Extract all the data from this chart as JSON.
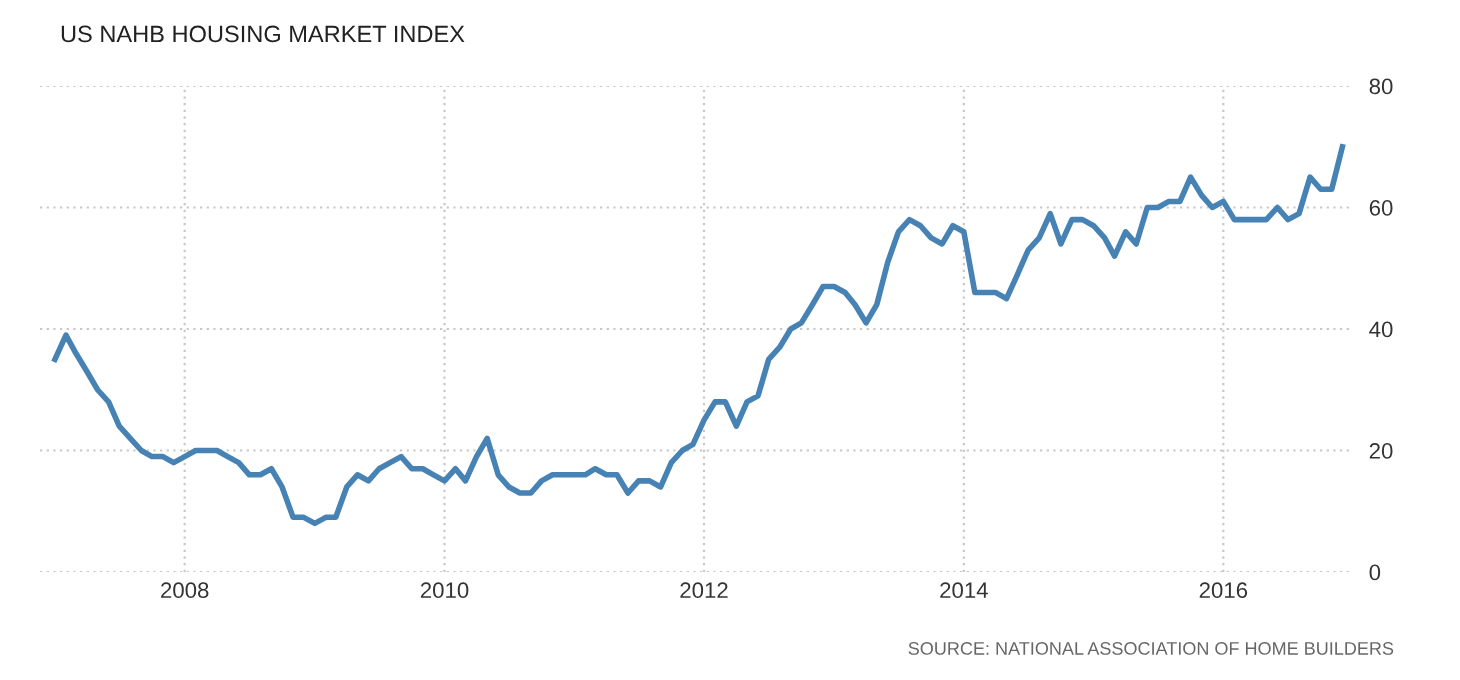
{
  "chart_data": {
    "type": "line",
    "title": "US NAHB HOUSING MARKET INDEX",
    "annotations": [
      "SOURCE: NATIONAL ASSOCIATION OF HOME BUILDERS"
    ],
    "x": [
      "2007-01",
      "2007-02",
      "2007-03",
      "2007-04",
      "2007-05",
      "2007-06",
      "2007-07",
      "2007-08",
      "2007-09",
      "2007-10",
      "2007-11",
      "2007-12",
      "2008-01",
      "2008-02",
      "2008-03",
      "2008-04",
      "2008-05",
      "2008-06",
      "2008-07",
      "2008-08",
      "2008-09",
      "2008-10",
      "2008-11",
      "2008-12",
      "2009-01",
      "2009-02",
      "2009-03",
      "2009-04",
      "2009-05",
      "2009-06",
      "2009-07",
      "2009-08",
      "2009-09",
      "2009-10",
      "2009-11",
      "2009-12",
      "2010-01",
      "2010-02",
      "2010-03",
      "2010-04",
      "2010-05",
      "2010-06",
      "2010-07",
      "2010-08",
      "2010-09",
      "2010-10",
      "2010-11",
      "2010-12",
      "2011-01",
      "2011-02",
      "2011-03",
      "2011-04",
      "2011-05",
      "2011-06",
      "2011-07",
      "2011-08",
      "2011-09",
      "2011-10",
      "2011-11",
      "2011-12",
      "2012-01",
      "2012-02",
      "2012-03",
      "2012-04",
      "2012-05",
      "2012-06",
      "2012-07",
      "2012-08",
      "2012-09",
      "2012-10",
      "2012-11",
      "2012-12",
      "2013-01",
      "2013-02",
      "2013-03",
      "2013-04",
      "2013-05",
      "2013-06",
      "2013-07",
      "2013-08",
      "2013-09",
      "2013-10",
      "2013-11",
      "2013-12",
      "2014-01",
      "2014-02",
      "2014-03",
      "2014-04",
      "2014-05",
      "2014-06",
      "2014-07",
      "2014-08",
      "2014-09",
      "2014-10",
      "2014-11",
      "2014-12",
      "2015-01",
      "2015-02",
      "2015-03",
      "2015-04",
      "2015-05",
      "2015-06",
      "2015-07",
      "2015-08",
      "2015-09",
      "2015-10",
      "2015-11",
      "2015-12",
      "2016-01",
      "2016-02",
      "2016-03",
      "2016-04",
      "2016-05",
      "2016-06",
      "2016-07",
      "2016-08",
      "2016-09",
      "2016-10",
      "2016-11",
      "2016-12"
    ],
    "series": [
      {
        "color": "#4682b4",
        "values": [
          35,
          39,
          36,
          33,
          30,
          28,
          24,
          22,
          20,
          19,
          19,
          18,
          19,
          20,
          20,
          20,
          19,
          18,
          16,
          16,
          17,
          14,
          9,
          9,
          8,
          9,
          9,
          14,
          16,
          15,
          17,
          18,
          19,
          17,
          17,
          16,
          15,
          17,
          15,
          19,
          22,
          16,
          14,
          13,
          13,
          15,
          16,
          16,
          16,
          16,
          17,
          16,
          16,
          13,
          15,
          15,
          14,
          18,
          20,
          21,
          25,
          28,
          28,
          24,
          28,
          29,
          35,
          37,
          40,
          41,
          44,
          47,
          47,
          46,
          44,
          41,
          44,
          51,
          56,
          58,
          57,
          55,
          54,
          57,
          56,
          46,
          46,
          46,
          45,
          49,
          53,
          55,
          59,
          54,
          58,
          58,
          57,
          55,
          52,
          56,
          54,
          60,
          60,
          61,
          61,
          65,
          62,
          60,
          61,
          58,
          58,
          58,
          58,
          60,
          58,
          59,
          65,
          63,
          63,
          70
        ]
      }
    ],
    "xlim": [
      "2006-11-20",
      "2016-12-28"
    ],
    "xticks": [
      {
        "value": "2008-01-01",
        "label": "2008"
      },
      {
        "value": "2010-01-01",
        "label": "2010"
      },
      {
        "value": "2012-01-01",
        "label": "2012"
      },
      {
        "value": "2014-01-01",
        "label": "2014"
      },
      {
        "value": "2016-01-01",
        "label": "2016"
      }
    ],
    "ylim": [
      0,
      80
    ],
    "yticks": [
      0,
      20,
      40,
      60,
      80
    ],
    "grid": true,
    "legend": false
  }
}
